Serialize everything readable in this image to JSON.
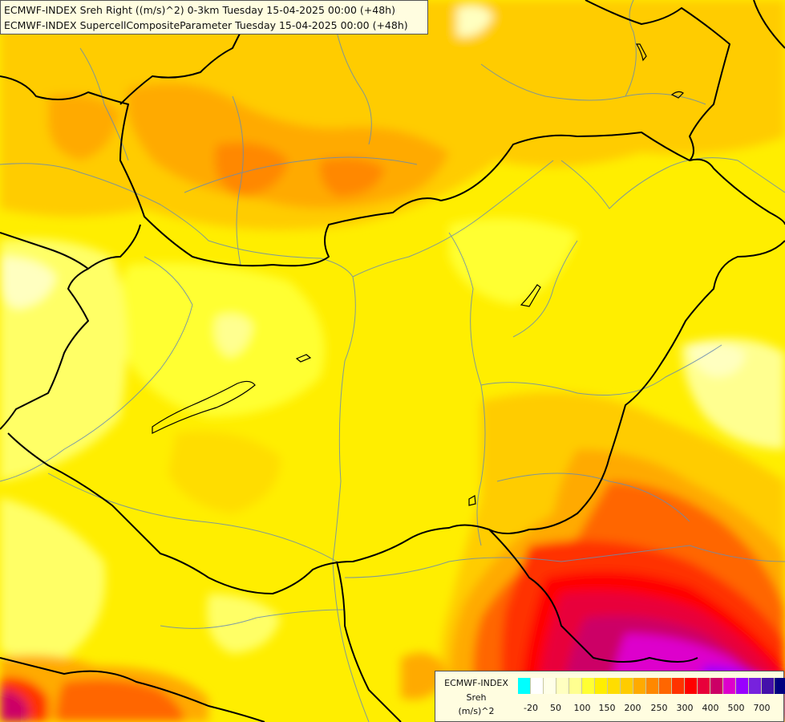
{
  "titles": {
    "line1": "ECMWF-INDEX Sreh Right ((m/s)^2) 0-3km Tuesday 15-04-2025 00:00 (+48h)",
    "line2": "ECMWF-INDEX SupercellCompositeParameter Tuesday 15-04-2025 00:00 (+48h)"
  },
  "legend": {
    "name": "ECMWF-INDEX",
    "variable": "Sreh",
    "unit": "(m/s)^2",
    "ticks": [
      "-20",
      "50",
      "100",
      "150",
      "200",
      "250",
      "300",
      "400",
      "500",
      "700"
    ],
    "colors": [
      "#00ffff",
      "#ffffff",
      "#ffffe8",
      "#ffffc0",
      "#ffff90",
      "#ffff33",
      "#ffee00",
      "#ffdd00",
      "#ffcc00",
      "#ffaa00",
      "#ff8800",
      "#ff6600",
      "#ff3300",
      "#ff0000",
      "#e8003a",
      "#cc0066",
      "#dd00cc",
      "#9900ff",
      "#7722dd",
      "#4411aa",
      "#000080"
    ]
  }
}
